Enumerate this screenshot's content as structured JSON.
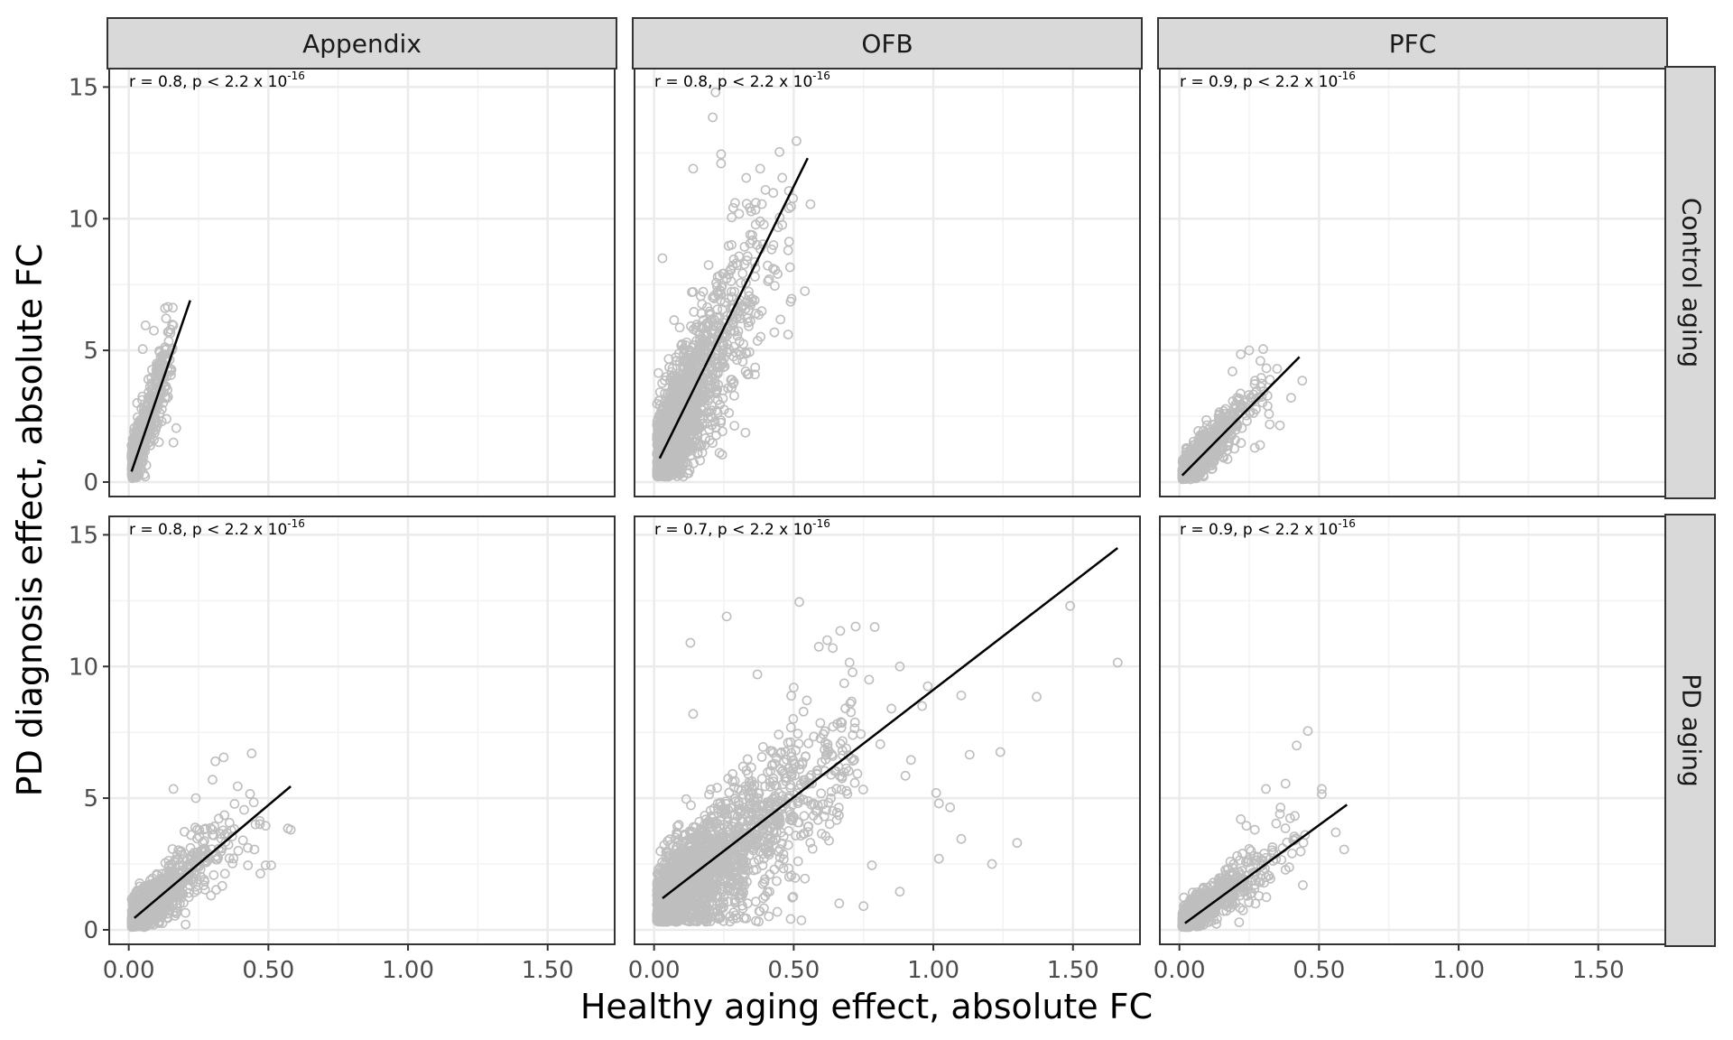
{
  "chart_data": {
    "type": "scatter",
    "xlabel": "Healthy aging effect, absolute FC",
    "ylabel": "PD diagnosis effect, absolute FC",
    "xlim": [
      -0.07,
      1.74
    ],
    "ylim": [
      -0.55,
      15.7
    ],
    "x_ticks": [
      0,
      0.5,
      1.0,
      1.5
    ],
    "x_tick_labels": [
      "0.00",
      "0.50",
      "1.00",
      "1.50"
    ],
    "y_ticks": [
      0,
      5,
      10,
      15
    ],
    "y_tick_labels": [
      "0",
      "5",
      "10",
      "15"
    ],
    "grid": true,
    "columns": [
      "Appendix",
      "OFB",
      "PFC"
    ],
    "rows": [
      "Control aging",
      "PD aging"
    ],
    "panels": [
      {
        "col": "Appendix",
        "row": "Control aging",
        "annotation": "r = 0.8, p < 2.2 x 10",
        "annotation_exp": "-16",
        "fit": {
          "x": [
            0.01,
            0.22
          ],
          "y": [
            0.4,
            6.9
          ]
        },
        "points": [
          [
            0.13,
            6.6
          ],
          [
            0.14,
            6.65
          ],
          [
            0.06,
            5.95
          ],
          [
            0.09,
            5.75
          ],
          [
            0.17,
            2.05
          ],
          [
            0.16,
            1.5
          ],
          [
            0.12,
            4.8
          ],
          [
            0.05,
            5.05
          ],
          [
            0.1,
            4.5
          ],
          [
            0.15,
            4.2
          ],
          [
            0.07,
            3.9
          ],
          [
            0.03,
            3.0
          ],
          [
            0.11,
            3.5
          ]
        ],
        "cloud": {
          "slope": 30,
          "intercept": 0.3,
          "xmin": 0.01,
          "xmax": 0.16,
          "xscale": 0.045,
          "ysd": 0.55,
          "ymin": 0.1,
          "n": 700
        }
      },
      {
        "col": "OFB",
        "row": "Control aging",
        "annotation": "r = 0.8, p < 2.2 x 10",
        "annotation_exp": "-16",
        "fit": {
          "x": [
            0.02,
            0.55
          ],
          "y": [
            0.9,
            12.3
          ]
        },
        "points": [
          [
            0.22,
            14.8
          ],
          [
            0.21,
            13.85
          ],
          [
            0.24,
            12.45
          ],
          [
            0.51,
            12.95
          ],
          [
            0.24,
            12.1
          ],
          [
            0.14,
            11.9
          ],
          [
            0.38,
            11.9
          ],
          [
            0.56,
            10.55
          ],
          [
            0.33,
            11.55
          ],
          [
            0.45,
            10.05
          ],
          [
            0.03,
            8.5
          ],
          [
            0.48,
            8.8
          ],
          [
            0.54,
            7.25
          ],
          [
            0.48,
            5.6
          ],
          [
            0.38,
            9.9
          ],
          [
            0.29,
            10.6
          ]
        ],
        "cloud": {
          "slope": 19,
          "intercept": 0.6,
          "xmin": 0.01,
          "xmax": 0.5,
          "xscale": 0.11,
          "ysd": 1.5,
          "ymin": 0.2,
          "n": 1500
        }
      },
      {
        "col": "PFC",
        "row": "Control aging",
        "annotation": "r = 0.9, p < 2.2 x 10",
        "annotation_exp": "-16",
        "fit": {
          "x": [
            0.01,
            0.43
          ],
          "y": [
            0.25,
            4.75
          ]
        },
        "points": [
          [
            0.3,
            5.05
          ],
          [
            0.25,
            5.0
          ],
          [
            0.22,
            4.85
          ],
          [
            0.19,
            4.2
          ],
          [
            0.29,
            4.6
          ],
          [
            0.35,
            4.3
          ],
          [
            0.44,
            3.85
          ],
          [
            0.36,
            2.15
          ],
          [
            0.27,
            1.3
          ],
          [
            0.4,
            3.2
          ]
        ],
        "cloud": {
          "slope": 11,
          "intercept": 0.15,
          "xmin": 0.01,
          "xmax": 0.33,
          "xscale": 0.08,
          "ysd": 0.45,
          "ymin": 0.1,
          "n": 750
        }
      },
      {
        "col": "Appendix",
        "row": "PD aging",
        "annotation": "r = 0.8, p < 2.2 x 10",
        "annotation_exp": "-16",
        "fit": {
          "x": [
            0.02,
            0.58
          ],
          "y": [
            0.45,
            5.45
          ]
        },
        "points": [
          [
            0.34,
            6.55
          ],
          [
            0.31,
            6.4
          ],
          [
            0.44,
            6.7
          ],
          [
            0.16,
            5.35
          ],
          [
            0.39,
            5.45
          ],
          [
            0.57,
            3.85
          ],
          [
            0.58,
            3.8
          ],
          [
            0.49,
            2.45
          ],
          [
            0.51,
            2.45
          ],
          [
            0.49,
            3.95
          ],
          [
            0.45,
            3.05
          ],
          [
            0.3,
            5.7
          ],
          [
            0.24,
            5.0
          ]
        ],
        "cloud": {
          "slope": 8.9,
          "intercept": 0.25,
          "xmin": 0.01,
          "xmax": 0.48,
          "xscale": 0.1,
          "ysd": 0.6,
          "ymin": 0.1,
          "n": 900
        }
      },
      {
        "col": "OFB",
        "row": "PD aging",
        "annotation": "r = 0.7, p < 2.2 x 10",
        "annotation_exp": "-16",
        "fit": {
          "x": [
            0.03,
            1.66
          ],
          "y": [
            1.2,
            14.5
          ]
        },
        "points": [
          [
            0.52,
            12.45
          ],
          [
            0.26,
            11.9
          ],
          [
            0.13,
            10.9
          ],
          [
            1.49,
            12.3
          ],
          [
            1.66,
            10.15
          ],
          [
            1.37,
            8.85
          ],
          [
            1.1,
            8.9
          ],
          [
            0.98,
            9.25
          ],
          [
            0.96,
            8.5
          ],
          [
            1.02,
            4.8
          ],
          [
            1.02,
            2.7
          ],
          [
            1.1,
            3.45
          ],
          [
            1.06,
            4.65
          ],
          [
            1.13,
            6.65
          ],
          [
            1.21,
            2.5
          ],
          [
            1.24,
            6.75
          ],
          [
            1.3,
            3.3
          ],
          [
            0.88,
            1.45
          ],
          [
            0.78,
            2.45
          ],
          [
            0.75,
            0.9
          ],
          [
            0.79,
            11.5
          ],
          [
            0.88,
            10.0
          ],
          [
            0.81,
            7.05
          ],
          [
            0.9,
            5.85
          ],
          [
            0.7,
            10.15
          ],
          [
            0.59,
            10.75
          ],
          [
            0.85,
            8.4
          ],
          [
            0.64,
            10.7
          ],
          [
            0.5,
            9.2
          ],
          [
            0.77,
            9.5
          ],
          [
            0.62,
            11.0
          ],
          [
            0.37,
            9.7
          ],
          [
            0.14,
            8.2
          ],
          [
            0.92,
            6.45
          ],
          [
            1.01,
            5.2
          ]
        ],
        "cloud": {
          "slope": 8.0,
          "intercept": 0.85,
          "xmin": 0.01,
          "xmax": 0.75,
          "xscale": 0.22,
          "ysd": 1.25,
          "ymin": 0.3,
          "n": 1900
        }
      },
      {
        "col": "PFC",
        "row": "PD aging",
        "annotation": "r = 0.9, p < 2.2 x 10",
        "annotation_exp": "-16",
        "fit": {
          "x": [
            0.02,
            0.6
          ],
          "y": [
            0.25,
            4.75
          ]
        },
        "points": [
          [
            0.46,
            7.55
          ],
          [
            0.42,
            7.0
          ],
          [
            0.51,
            5.35
          ],
          [
            0.51,
            5.15
          ],
          [
            0.38,
            5.55
          ],
          [
            0.31,
            5.35
          ],
          [
            0.56,
            3.7
          ],
          [
            0.59,
            3.05
          ],
          [
            0.45,
            3.6
          ],
          [
            0.22,
            4.2
          ],
          [
            0.24,
            3.95
          ],
          [
            0.36,
            4.4
          ],
          [
            0.27,
            3.8
          ]
        ],
        "cloud": {
          "slope": 7.9,
          "intercept": 0.15,
          "xmin": 0.01,
          "xmax": 0.45,
          "xscale": 0.1,
          "ysd": 0.45,
          "ymin": 0.1,
          "n": 750
        }
      }
    ],
    "colors": {
      "points": "#bebebe",
      "fit": "#000000",
      "strip_bg": "#d9d9d9",
      "grid": "#ebebeb",
      "border": "#333333"
    }
  }
}
